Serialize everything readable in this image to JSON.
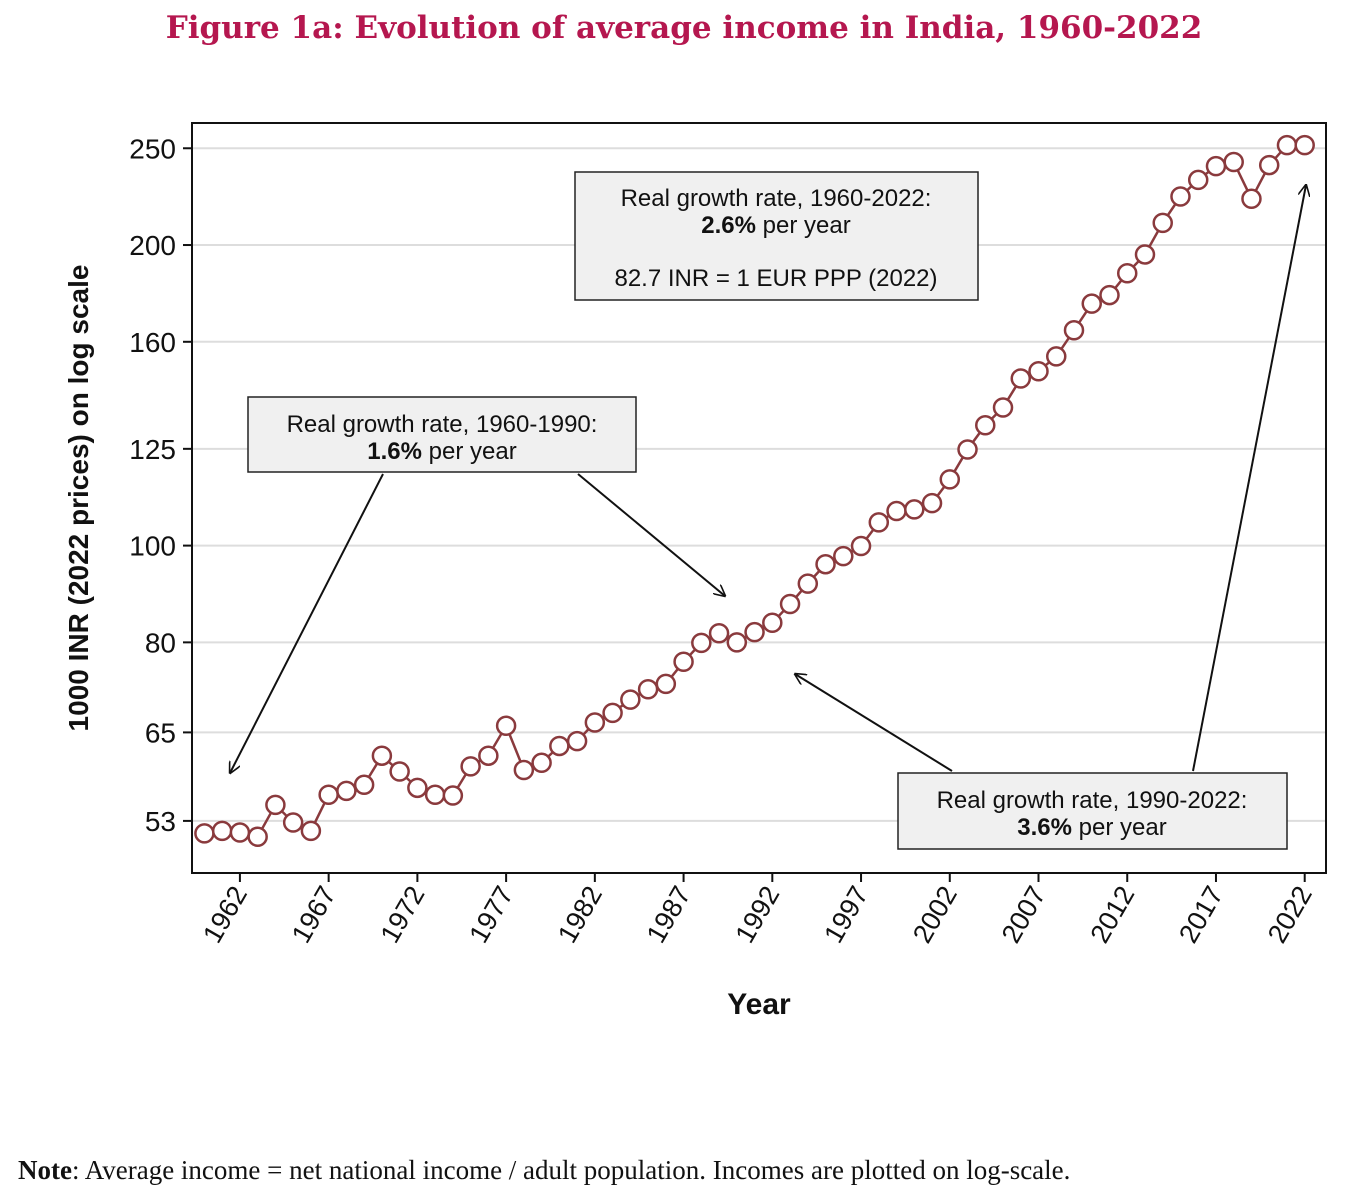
{
  "title": "Figure 1a: Evolution of average income in India, 1960-2022",
  "note": {
    "label": "Note",
    "text": ": Average income = net national income / adult population. Incomes are plotted on log-scale."
  },
  "colors": {
    "title": "#b5174f",
    "series": "#8a3a3d",
    "grid": "#dddddd"
  },
  "chart_data": {
    "type": "line",
    "xlabel": "Year",
    "ylabel": "1000 INR (2022 prices) on log scale",
    "yscale": "log",
    "xlim": [
      1959.3,
      2023.2
    ],
    "ylim": [
      47,
      265
    ],
    "yticks": [
      53,
      65,
      80,
      100,
      125,
      160,
      200,
      250
    ],
    "xticks": [
      1962,
      1967,
      1972,
      1977,
      1982,
      1987,
      1992,
      1997,
      2002,
      2007,
      2012,
      2017,
      2022
    ],
    "grid": true,
    "marker": "hollow-circle",
    "series": [
      {
        "x": [
          1960,
          1961,
          1962,
          1963,
          1964,
          1965,
          1966,
          1967,
          1968,
          1969,
          1970,
          1971,
          1972,
          1973,
          1974,
          1975,
          1976,
          1977,
          1978,
          1979,
          1980,
          1981,
          1982,
          1983,
          1984,
          1985,
          1986,
          1987,
          1988,
          1989,
          1990,
          1991,
          1992,
          1993,
          1994,
          1995,
          1996,
          1997,
          1998,
          1999,
          2000,
          2001,
          2002,
          2003,
          2004,
          2005,
          2006,
          2007,
          2008,
          2009,
          2010,
          2011,
          2012,
          2013,
          2014,
          2015,
          2016,
          2017,
          2018,
          2019,
          2020,
          2021,
          2022
        ],
        "y": [
          51.5,
          51.8,
          51.6,
          51.1,
          55.0,
          52.8,
          51.8,
          56.3,
          56.8,
          57.6,
          61.6,
          59.4,
          57.2,
          56.3,
          56.2,
          60.1,
          61.6,
          66.0,
          59.6,
          60.6,
          63.0,
          63.7,
          66.5,
          68.0,
          70.1,
          71.8,
          72.7,
          76.5,
          79.9,
          81.7,
          80.0,
          81.9,
          83.7,
          87.4,
          91.6,
          95.8,
          97.6,
          99.9,
          105.5,
          108.3,
          108.7,
          110.3,
          116.5,
          124.8,
          132.0,
          137.5,
          147.0,
          149.5,
          154.7,
          164.3,
          174.7,
          178.2,
          187.4,
          195.7,
          210.5,
          223.7,
          232.4,
          239.9,
          242.2,
          222.5,
          240.5,
          251.8,
          251.8
        ]
      }
    ],
    "annotations": [
      {
        "lines": [
          "Real growth rate, 1960-2022:",
          "2.6% per year",
          "",
          "82.7 INR = 1 EUR PPP (2022)"
        ]
      },
      {
        "lines": [
          "Real growth rate, 1960-1990:",
          "1.6% per year"
        ]
      },
      {
        "lines": [
          "Real growth rate, 1990-2022:",
          "3.6% per year"
        ]
      }
    ]
  }
}
